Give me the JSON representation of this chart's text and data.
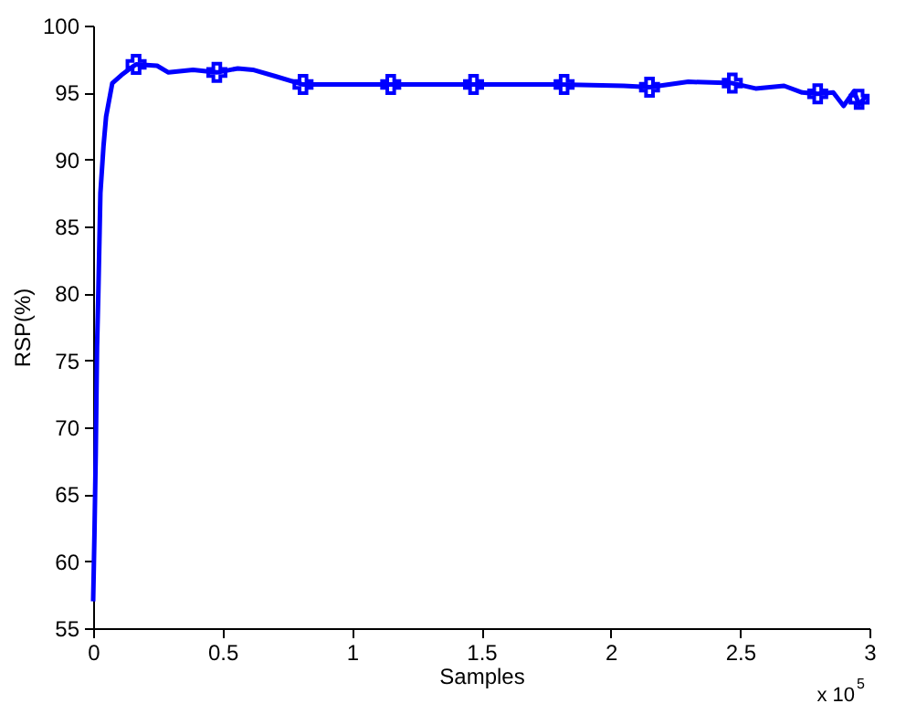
{
  "chart_data": {
    "type": "line",
    "xlabel": "Samples",
    "ylabel": "RSP(%)",
    "annotations": [
      "x 10$^{5}$"
    ],
    "xlim": [
      0,
      3
    ],
    "xticks": [
      0,
      0.5,
      1,
      1.5,
      2,
      2.5,
      3
    ],
    "ylim": [
      55,
      100
    ],
    "yticks": [
      55,
      60,
      65,
      70,
      75,
      80,
      85,
      90,
      95,
      100
    ],
    "grid": false,
    "series": [
      {
        "color": "#0000ff",
        "marker": "none",
        "line_style": "solid",
        "x": [
          0,
          0.005,
          0.01,
          0.015,
          0.02,
          0.028,
          0.04,
          0.05,
          0.074,
          0.109,
          0.143,
          0.166,
          0.247,
          0.291,
          0.386,
          0.478,
          0.559,
          0.617,
          0.707,
          0.811,
          1.0,
          1.2,
          1.4,
          1.6,
          1.8,
          2.05,
          2.15,
          2.3,
          2.47,
          2.56,
          2.67,
          2.74,
          2.8,
          2.86,
          2.9,
          2.94,
          2.96,
          2.985
        ],
        "values": [
          57,
          62,
          68,
          76,
          80,
          87.5,
          91,
          93.2,
          95.7,
          96.3,
          96.8,
          97.1,
          97.0,
          96.5,
          96.7,
          96.5,
          96.8,
          96.7,
          96.2,
          95.6,
          95.6,
          95.6,
          95.6,
          95.6,
          95.6,
          95.5,
          95.4,
          95.8,
          95.7,
          95.3,
          95.5,
          95.0,
          94.9,
          95.0,
          94.0,
          95.1,
          94.1,
          94.7
        ]
      },
      {
        "type": "scatter",
        "color": "#0000ff",
        "marker": "cross",
        "x": [
          0.166,
          0.478,
          0.811,
          1.15,
          1.47,
          1.82,
          2.15,
          2.47,
          2.8,
          2.96
        ],
        "values": [
          97.1,
          96.5,
          95.6,
          95.6,
          95.6,
          95.6,
          95.4,
          95.7,
          94.9,
          94.5
        ]
      }
    ]
  }
}
